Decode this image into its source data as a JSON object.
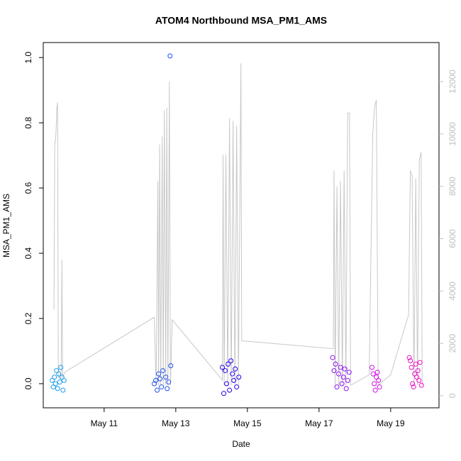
{
  "chart_data": {
    "type": "scatter",
    "title": "ATOM4 Northbound MSA_PM1_AMS",
    "x_label": "Date",
    "y_label": "MSA_PM1_AMS",
    "xlim": [
      9.3,
      20.35
    ],
    "xticks": [
      {
        "value": 11,
        "label": "May 11"
      },
      {
        "value": 13,
        "label": "May 13"
      },
      {
        "value": 15,
        "label": "May 15"
      },
      {
        "value": 17,
        "label": "May 17"
      },
      {
        "value": 19,
        "label": "May 19"
      }
    ],
    "ylim": [
      -0.074,
      1.046
    ],
    "yticks": [
      {
        "value": 0,
        "label": "0.0"
      },
      0.2,
      0.4,
      0.6,
      0.8,
      {
        "value": 1,
        "label": "1.0"
      }
    ],
    "y2lim": [
      -460,
      13490
    ],
    "y2ticks": [
      0,
      2000,
      4000,
      6000,
      8000,
      10000,
      12000
    ],
    "y2_color": "#bebebe",
    "series": [
      {
        "axis": "y2",
        "color": "#c8c8c8",
        "x": [
          9.6,
          9.62,
          9.64,
          9.66,
          9.68,
          9.7,
          9.72,
          9.8,
          9.82,
          9.84,
          9.9,
          12.4,
          12.45,
          12.5,
          12.52,
          12.55,
          12.58,
          12.62,
          12.65,
          12.68,
          12.72,
          12.75,
          12.78,
          12.82,
          12.85,
          12.9,
          14.3,
          14.32,
          14.35,
          14.4,
          14.45,
          14.5,
          14.55,
          14.6,
          14.65,
          14.7,
          14.75,
          14.82,
          14.84,
          17.4,
          17.42,
          17.45,
          17.5,
          17.55,
          17.6,
          17.65,
          17.7,
          17.75,
          17.8,
          17.85,
          17.88,
          18.4,
          18.5,
          18.55,
          18.6,
          18.65,
          19.0,
          19.5,
          19.55,
          19.6,
          19.65,
          19.7,
          19.75,
          19.8,
          19.85,
          19.88
        ],
        "values": [
          3300,
          9700,
          9700,
          10200,
          11000,
          11200,
          700,
          700,
          5200,
          700,
          900,
          3000,
          400,
          8200,
          400,
          9600,
          400,
          9900,
          400,
          10900,
          400,
          11000,
          400,
          12000,
          400,
          2900,
          600,
          9200,
          400,
          9200,
          400,
          10600,
          400,
          10500,
          400,
          10300,
          400,
          12700,
          2100,
          1800,
          8600,
          400,
          8000,
          400,
          8200,
          400,
          8600,
          400,
          10800,
          10800,
          400,
          800,
          10000,
          11000,
          11300,
          400,
          800,
          3100,
          8600,
          8400,
          400,
          8300,
          400,
          9000,
          9300,
          400
        ]
      },
      {
        "color": "#1e9cf0",
        "x": [
          9.55,
          9.58,
          9.61,
          9.64,
          9.67,
          9.7,
          9.73,
          9.76,
          9.79,
          9.82,
          9.85,
          9.88
        ],
        "values": [
          0.01,
          -0.01,
          0.02,
          0.0,
          0.04,
          -0.015,
          0.03,
          0.005,
          0.05,
          0.02,
          -0.02,
          0.01
        ]
      },
      {
        "color": "#1f4ff0",
        "x": [
          12.4,
          12.44,
          12.48,
          12.52,
          12.56,
          12.6,
          12.64,
          12.84,
          12.86,
          12.72,
          12.76,
          12.8
        ],
        "values": [
          0.0,
          0.01,
          -0.02,
          0.03,
          0.015,
          -0.01,
          0.04,
          1.005,
          0.055,
          0.02,
          -0.015,
          0.005
        ]
      },
      {
        "color": "#2a00f0",
        "x": [
          14.3,
          14.34,
          14.38,
          14.42,
          14.46,
          14.5,
          14.54,
          14.58,
          14.62,
          14.66,
          14.7,
          14.76
        ],
        "values": [
          0.05,
          -0.03,
          0.04,
          0.0,
          0.06,
          -0.02,
          0.07,
          0.03,
          0.01,
          0.045,
          -0.01,
          0.02
        ]
      },
      {
        "color": "#8a10f0",
        "x": [
          17.38,
          17.42,
          17.46,
          17.5,
          17.55,
          17.6,
          17.64,
          17.68,
          17.72,
          17.76,
          17.8,
          17.84
        ],
        "values": [
          0.08,
          0.04,
          0.06,
          -0.01,
          0.03,
          0.05,
          0.0,
          0.02,
          0.045,
          -0.015,
          0.01,
          0.035
        ]
      },
      {
        "color": "#d010e8",
        "x": [
          18.48,
          18.51,
          18.54,
          18.57,
          18.6,
          18.63,
          18.66,
          18.69
        ],
        "values": [
          0.05,
          0.03,
          0.0,
          -0.02,
          0.02,
          0.035,
          0.01,
          -0.01
        ]
      },
      {
        "color": "#f010c8",
        "x": [
          19.52,
          19.55,
          19.58,
          19.61,
          19.64,
          19.67,
          19.7,
          19.73,
          19.76,
          19.79,
          19.82,
          19.86
        ],
        "values": [
          0.08,
          0.07,
          0.05,
          0.0,
          -0.01,
          0.03,
          0.06,
          0.02,
          0.04,
          0.01,
          0.065,
          -0.005
        ]
      }
    ]
  }
}
